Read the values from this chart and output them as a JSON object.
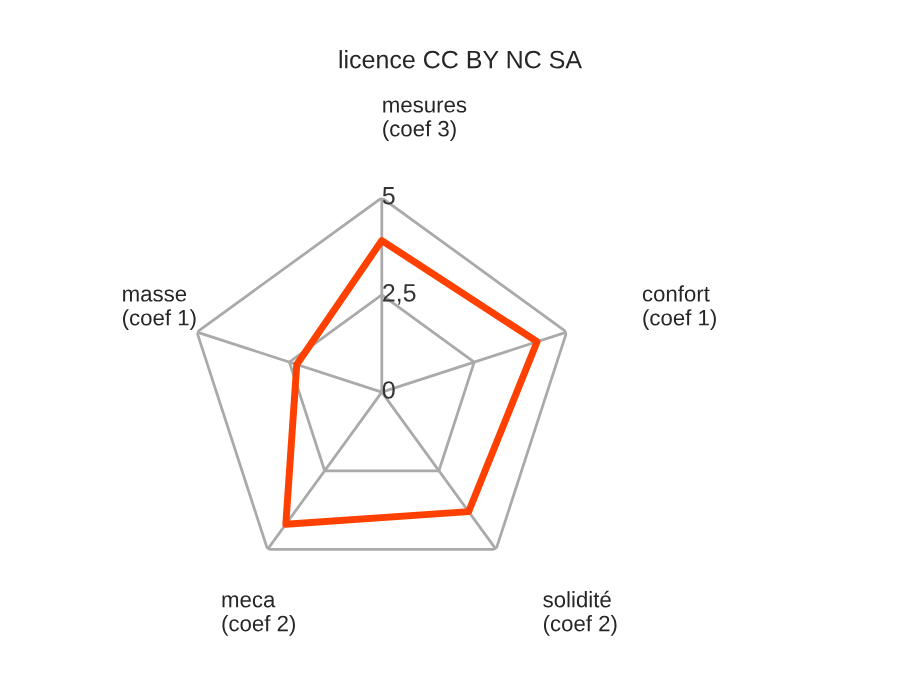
{
  "chart_data": {
    "type": "radar",
    "title": "licence CC BY NC SA",
    "categories": [
      "mesures\n(coef 3)",
      "confort\n(coef 1)",
      "solidité\n(coef 2)",
      "meca\n(coef 2)",
      "masse\n(coef 1)"
    ],
    "series": [
      {
        "color": "#ff4000",
        "values": [
          3.9,
          4.2,
          3.8,
          4.2,
          2.3
        ]
      }
    ],
    "ylim": [
      0,
      5
    ],
    "yticks": [
      0,
      {
        "value": 2.5,
        "label": "2,5"
      },
      5
    ],
    "grid": true
  }
}
